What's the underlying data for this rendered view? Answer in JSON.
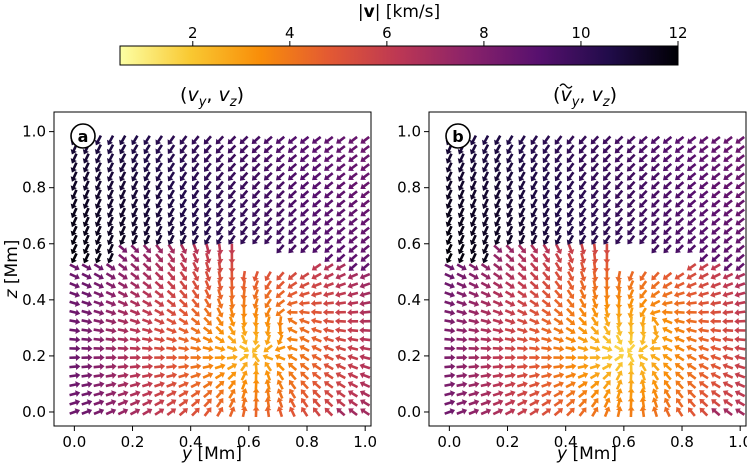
{
  "colorbar": {
    "label": "|v| [km/s]",
    "label_prefix": "|",
    "label_symbol": "v",
    "label_suffix": "| [km/s]",
    "range": [
      0.5,
      12
    ],
    "ticks": [
      "2",
      "4",
      "6",
      "8",
      "10",
      "12"
    ],
    "tick_values": [
      2,
      4,
      6,
      8,
      10,
      12
    ],
    "colormap": "inferno_r",
    "stops": [
      "#fcffa4",
      "#f9c932",
      "#f98e09",
      "#e35933",
      "#bc3754",
      "#8a226a",
      "#57106e",
      "#210c4a",
      "#000004"
    ]
  },
  "chart_data": [
    {
      "type": "quiver",
      "panel_label": "a",
      "title": "(v_y, v_z)",
      "title_parts": {
        "open": "(",
        "v1": "v",
        "s1": "y",
        "sep": ", ",
        "v2": "v",
        "s2": "z",
        "close": ")"
      },
      "xlabel": "y [Mm]",
      "xlabel_var": "y",
      "xlabel_unit": " [Mm]",
      "ylabel": "z [Mm]",
      "ylabel_var": "z",
      "ylabel_unit": " [Mm]",
      "xlim": [
        -0.07,
        1.02
      ],
      "ylim": [
        -0.05,
        1.07
      ],
      "xticks": [
        "0.0",
        "0.2",
        "0.4",
        "0.6",
        "0.8",
        "1.0"
      ],
      "xtick_values": [
        0.0,
        0.2,
        0.4,
        0.6,
        0.8,
        1.0
      ],
      "yticks": [
        "0.0",
        "0.2",
        "0.4",
        "0.6",
        "0.8",
        "1.0"
      ],
      "ytick_values": [
        0.0,
        0.2,
        0.4,
        0.6,
        0.8,
        1.0
      ],
      "grid": [
        25,
        31
      ],
      "field": {
        "description": "upper layer above interface moves down-left at ~9-12 km/s; lower layer shows convergent flow towards a sink near (y=0.6, z=0.2)",
        "interface_z": [
          0.53,
          0.6,
          0.6,
          0.5
        ],
        "upper_speed": [
          8,
          12
        ],
        "sink_y": 0.6,
        "sink_z": 0.22,
        "vortex_y": 0.72,
        "vortex_z": 0.33
      }
    },
    {
      "type": "quiver",
      "panel_label": "b",
      "title": "(ṽ_y, v_z)",
      "title_parts": {
        "open": "(",
        "v1": "v",
        "s1": "y",
        "sep": ", ",
        "v2": "v",
        "s2": "z",
        "close": ")"
      },
      "xlabel": "y [Mm]",
      "xlabel_var": "y",
      "xlabel_unit": " [Mm]",
      "ylabel": "",
      "xlim": [
        -0.07,
        1.02
      ],
      "ylim": [
        -0.05,
        1.07
      ],
      "xticks": [
        "0.0",
        "0.2",
        "0.4",
        "0.6",
        "0.8",
        "1.0"
      ],
      "xtick_values": [
        0.0,
        0.2,
        0.4,
        0.6,
        0.8,
        1.0
      ],
      "yticks": [
        "0.0",
        "0.2",
        "0.4",
        "0.6",
        "0.8",
        "1.0"
      ],
      "ytick_values": [
        0.0,
        0.2,
        0.4,
        0.6,
        0.8,
        1.0
      ],
      "grid": [
        25,
        31
      ],
      "field": {
        "description": "same as (a) with tilde-filtered horizontal velocity; lower-layer convergence weaker near sink",
        "interface_z": [
          0.53,
          0.6,
          0.6,
          0.5
        ],
        "upper_speed": [
          8,
          12
        ],
        "sink_y": 0.6,
        "sink_z": 0.22,
        "vortex_y": 0.7,
        "vortex_z": 0.33
      }
    }
  ]
}
